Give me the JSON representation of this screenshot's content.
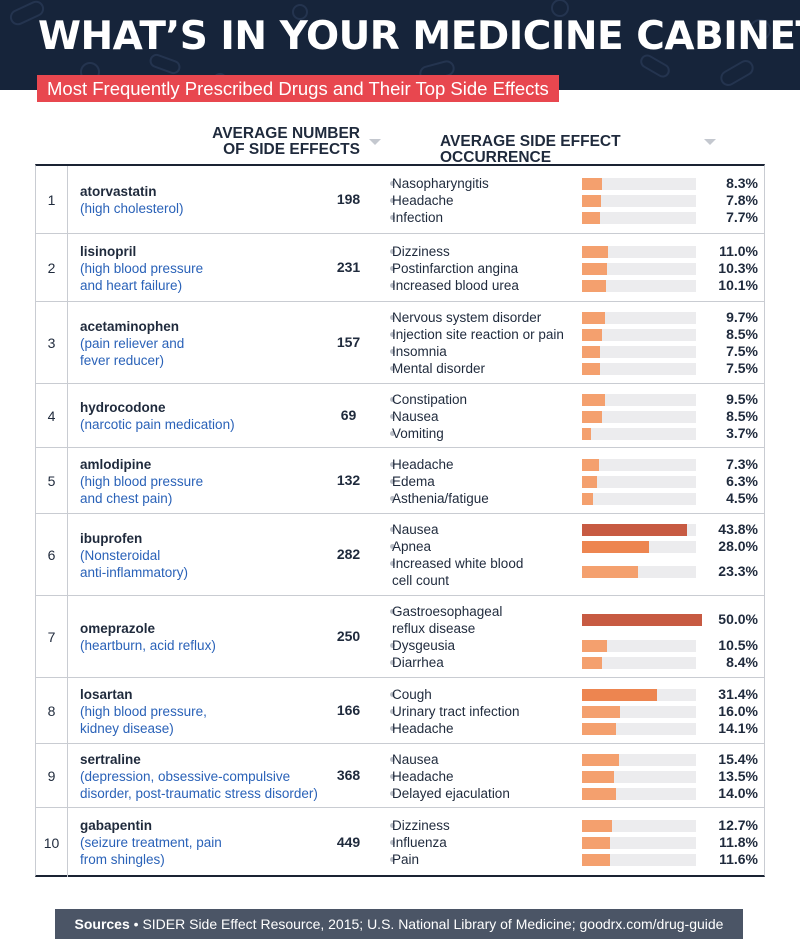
{
  "header": {
    "title": "WHAT’S IN YOUR MEDICINE CABINET?",
    "subtitle": "Most Frequently Prescribed Drugs and Their Top Side Effects",
    "col_num_label": "AVERAGE NUMBER\nOF SIDE EFFECTS",
    "col_occ_label": "AVERAGE SIDE EFFECT OCCURRENCE"
  },
  "colors": {
    "banner": "#16243a",
    "subtitle_bg": "#e8474f",
    "link_blue": "#2a62b8",
    "bar_light": "#f4a06e",
    "bar_mid": "#ed8550",
    "bar_dark": "#c75a42",
    "track": "#ececee"
  },
  "chart_data": {
    "type": "bar",
    "title": "WHAT’S IN YOUR MEDICINE CABINET?",
    "subtitle": "Most Frequently Prescribed Drugs and Their Top Side Effects",
    "xlim": [
      0,
      100
    ],
    "unit": "%",
    "drugs": [
      {
        "rank": "1",
        "name": "atorvastatin",
        "use": "(high cholesterol)",
        "avg_side_effects": "198",
        "effects": [
          {
            "label": "Nasopharyngitis",
            "value": 8.3,
            "text": "8.3%"
          },
          {
            "label": "Headache",
            "value": 7.8,
            "text": "7.8%"
          },
          {
            "label": "Infection",
            "value": 7.7,
            "text": "7.7%"
          }
        ]
      },
      {
        "rank": "2",
        "name": "lisinopril",
        "use": "(high blood pressure\nand heart failure)",
        "avg_side_effects": "231",
        "effects": [
          {
            "label": "Dizziness",
            "value": 11.0,
            "text": "11.0%"
          },
          {
            "label": "Postinfarction angina",
            "value": 10.3,
            "text": "10.3%"
          },
          {
            "label": "Increased blood urea",
            "value": 10.1,
            "text": "10.1%"
          }
        ]
      },
      {
        "rank": "3",
        "name": "acetaminophen",
        "use": "(pain reliever and\nfever reducer)",
        "avg_side_effects": "157",
        "effects": [
          {
            "label": "Nervous system disorder",
            "value": 9.7,
            "text": "9.7%"
          },
          {
            "label": "Injection site reaction or pain",
            "value": 8.5,
            "text": "8.5%"
          },
          {
            "label": "Insomnia",
            "value": 7.5,
            "text": "7.5%"
          },
          {
            "label": "Mental disorder",
            "value": 7.5,
            "text": "7.5%"
          }
        ]
      },
      {
        "rank": "4",
        "name": "hydrocodone",
        "use": "(narcotic pain medication)",
        "avg_side_effects": "69",
        "effects": [
          {
            "label": "Constipation",
            "value": 9.5,
            "text": "9.5%"
          },
          {
            "label": "Nausea",
            "value": 8.5,
            "text": "8.5%"
          },
          {
            "label": "Vomiting",
            "value": 3.7,
            "text": "3.7%"
          }
        ]
      },
      {
        "rank": "5",
        "name": "amlodipine",
        "use": "(high blood pressure\nand chest pain)",
        "avg_side_effects": "132",
        "effects": [
          {
            "label": "Headache",
            "value": 7.3,
            "text": "7.3%"
          },
          {
            "label": "Edema",
            "value": 6.3,
            "text": "6.3%"
          },
          {
            "label": "Asthenia/fatigue",
            "value": 4.5,
            "text": "4.5%"
          }
        ]
      },
      {
        "rank": "6",
        "name": "ibuprofen",
        "use": "(Nonsteroidal\nanti-inflammatory)",
        "avg_side_effects": "282",
        "effects": [
          {
            "label": "Nausea",
            "value": 43.8,
            "text": "43.8%"
          },
          {
            "label": "Apnea",
            "value": 28.0,
            "text": "28.0%"
          },
          {
            "label": "Increased white blood\ncell count",
            "value": 23.3,
            "text": "23.3%"
          }
        ]
      },
      {
        "rank": "7",
        "name": "omeprazole",
        "use": "(heartburn, acid reflux)",
        "avg_side_effects": "250",
        "effects": [
          {
            "label": "Gastroesophageal\nreflux disease",
            "value": 50.0,
            "text": "50.0%"
          },
          {
            "label": "Dysgeusia",
            "value": 10.5,
            "text": "10.5%"
          },
          {
            "label": "Diarrhea",
            "value": 8.4,
            "text": "8.4%"
          }
        ]
      },
      {
        "rank": "8",
        "name": "losartan",
        "use": "(high blood pressure,\nkidney disease)",
        "avg_side_effects": "166",
        "effects": [
          {
            "label": "Cough",
            "value": 31.4,
            "text": "31.4%"
          },
          {
            "label": "Urinary tract infection",
            "value": 16.0,
            "text": "16.0%"
          },
          {
            "label": "Headache",
            "value": 14.1,
            "text": "14.1%"
          }
        ]
      },
      {
        "rank": "9",
        "name": "sertraline",
        "use": "(depression, obsessive-compulsive\ndisorder, post-traumatic stress disorder)",
        "avg_side_effects": "368",
        "effects": [
          {
            "label": "Nausea",
            "value": 15.4,
            "text": "15.4%"
          },
          {
            "label": "Headache",
            "value": 13.5,
            "text": "13.5%"
          },
          {
            "label": "Delayed ejaculation",
            "value": 14.0,
            "text": "14.0%"
          }
        ]
      },
      {
        "rank": "10",
        "name": "gabapentin",
        "use": "(seizure treatment, pain\nfrom shingles)",
        "avg_side_effects": "449",
        "effects": [
          {
            "label": "Dizziness",
            "value": 12.7,
            "text": "12.7%"
          },
          {
            "label": "Influenza",
            "value": 11.8,
            "text": "11.8%"
          },
          {
            "label": "Pain",
            "value": 11.6,
            "text": "11.6%"
          }
        ]
      }
    ]
  },
  "footer": {
    "sources_label": "Sources",
    "sources_text": "SIDER Side Effect Resource, 2015; U.S. National Library of Medicine; goodrx.com/drug-guide"
  }
}
